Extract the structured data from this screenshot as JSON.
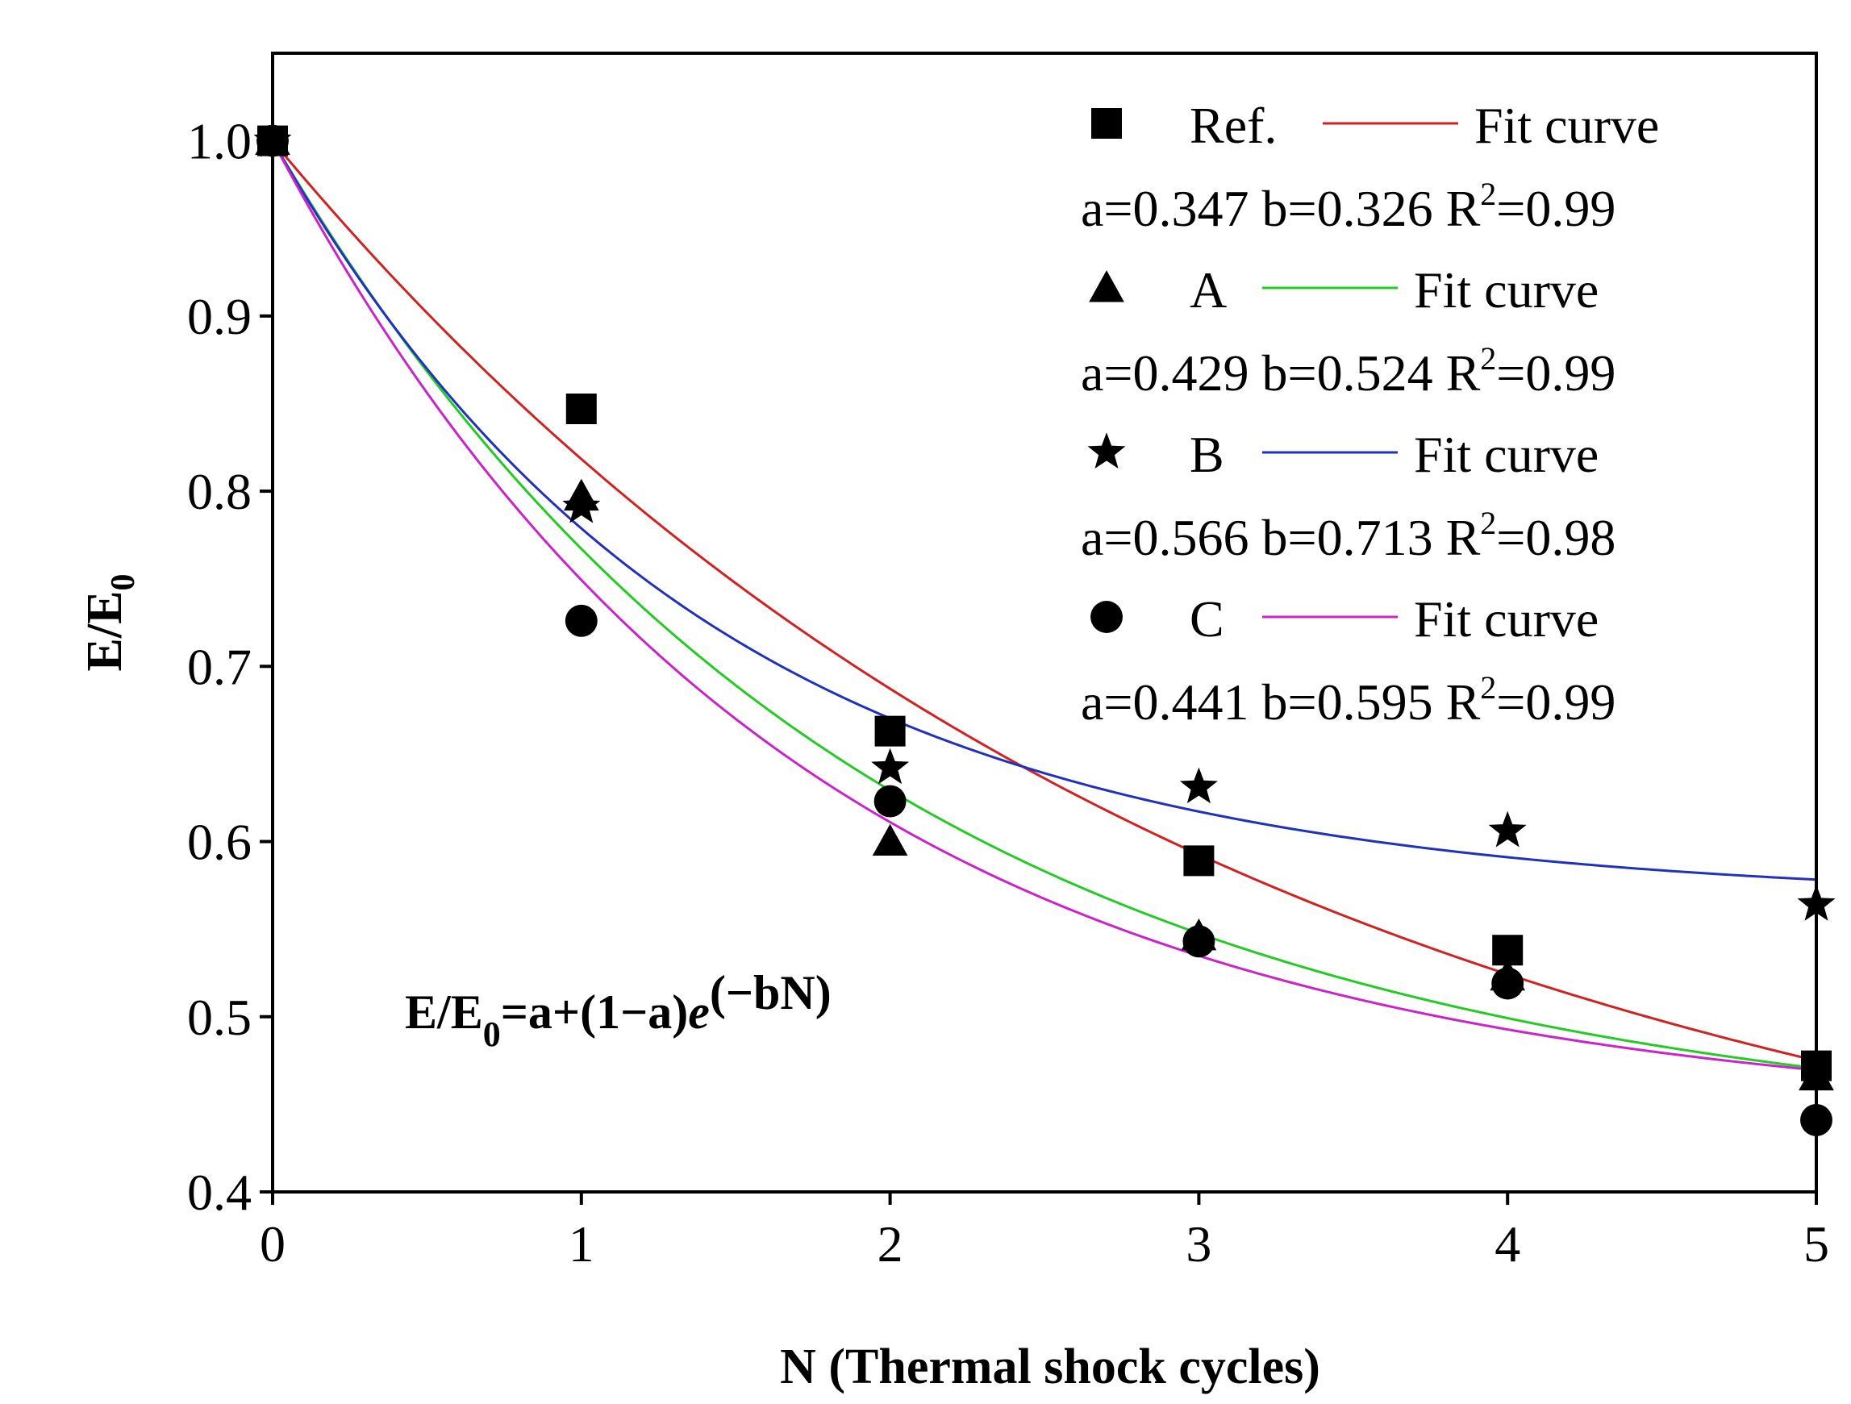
{
  "chart_data": {
    "type": "scatter",
    "x_label": "N (Thermal shock cycles)",
    "y_label_main": "E/E",
    "y_label_sub": "0",
    "xlim": [
      0,
      5
    ],
    "ylim": [
      0.4,
      1.05
    ],
    "x_ticks": [
      "0",
      "1",
      "2",
      "3",
      "4",
      "5"
    ],
    "y_ticks": [
      "0.4",
      "0.5",
      "0.6",
      "0.7",
      "0.8",
      "0.9",
      "1.0"
    ],
    "x_tick_values": [
      0,
      1,
      2,
      3,
      4,
      5
    ],
    "y_tick_values": [
      0.4,
      0.5,
      0.6,
      0.7,
      0.8,
      0.9,
      1.0
    ],
    "fit_label": "Fit curve",
    "formula": {
      "lhs_main": "E/E",
      "lhs_sub": "0",
      "rhs": "=a+(1−a)",
      "e": "e",
      "exponent": "(−bN)"
    },
    "series": [
      {
        "name": "Ref.",
        "marker": "square",
        "color": "#d42020",
        "x": [
          0,
          1,
          2,
          3,
          4,
          5
        ],
        "y": [
          1.0,
          0.847,
          0.663,
          0.589,
          0.538,
          0.472
        ],
        "fit": {
          "a": 0.347,
          "b": 0.326
        },
        "params": {
          "a": "0.347",
          "b": "0.326",
          "r2": "0.99"
        }
      },
      {
        "name": "A",
        "marker": "triangle",
        "color": "#22cc22",
        "x": [
          0,
          1,
          2,
          3,
          4,
          5
        ],
        "y": [
          1.0,
          0.797,
          0.6,
          0.546,
          0.523,
          0.466
        ],
        "fit": {
          "a": 0.429,
          "b": 0.524
        },
        "params": {
          "a": "0.429",
          "b": "0.524",
          "r2": "0.99"
        }
      },
      {
        "name": "B",
        "marker": "star",
        "color": "#2030c0",
        "x": [
          0,
          1,
          2,
          3,
          4,
          5
        ],
        "y": [
          1.0,
          0.791,
          0.642,
          0.631,
          0.606,
          0.564
        ],
        "fit": {
          "a": 0.566,
          "b": 0.713
        },
        "params": {
          "a": "0.566",
          "b": "0.713",
          "r2": "0.98"
        }
      },
      {
        "name": "C",
        "marker": "circle",
        "color": "#cc22cc",
        "x": [
          0,
          1,
          2,
          3,
          4,
          5
        ],
        "y": [
          1.0,
          0.726,
          0.623,
          0.543,
          0.519,
          0.441
        ],
        "fit": {
          "a": 0.441,
          "b": 0.595
        },
        "params": {
          "a": "0.441",
          "b": "0.595",
          "r2": "0.99"
        }
      }
    ]
  }
}
